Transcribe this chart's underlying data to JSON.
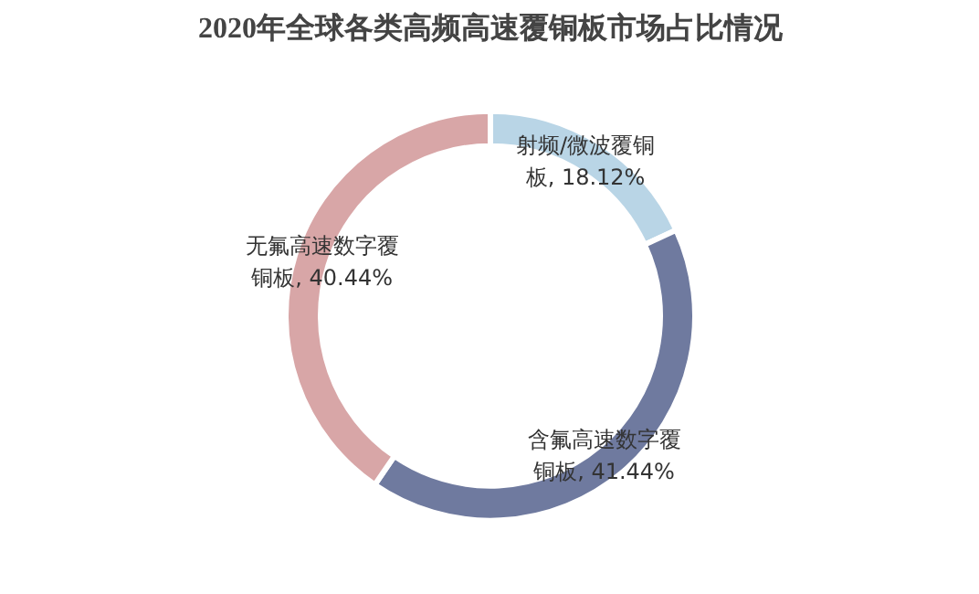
{
  "chart_data": {
    "type": "donut",
    "title": "2020年全球各类高频高速覆铜板市场占比情况",
    "categories": [
      "射频/微波覆铜板",
      "含氟高速数字覆铜板",
      "无氟高速数字覆铜板"
    ],
    "values": [
      18.12,
      41.44,
      40.44
    ],
    "colors": [
      "#b9d5e6",
      "#6f7a9f",
      "#d8a6a7"
    ],
    "value_labels": [
      "18.12%",
      "41.44%",
      "40.44%"
    ]
  }
}
